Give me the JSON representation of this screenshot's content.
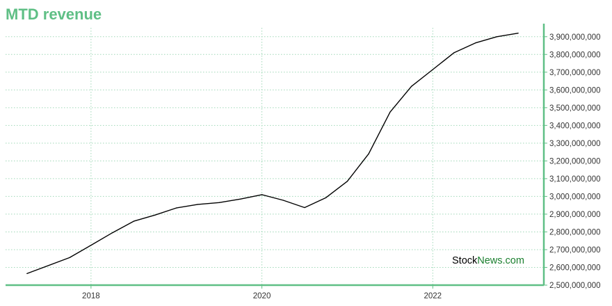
{
  "chart_data": {
    "type": "line",
    "title": "MTD revenue",
    "xlabel": "",
    "ylabel": "",
    "x_ticks": [
      2018,
      2020,
      2022
    ],
    "x_range": [
      2017.0,
      2023.3
    ],
    "y_range": [
      2500000000,
      3950000000
    ],
    "y_tick_start": 2500000000,
    "y_tick_step": 100000000,
    "y_tick_count": 15,
    "grid": true,
    "y_axis_position": "right",
    "series": [
      {
        "x": [
          2017.25,
          2017.75,
          2018.0,
          2018.25,
          2018.5,
          2018.75,
          2019.0,
          2019.25,
          2019.5,
          2019.75,
          2020.0,
          2020.25,
          2020.5,
          2020.75,
          2021.0,
          2021.25,
          2021.5,
          2021.75,
          2022.0,
          2022.25,
          2022.5,
          2022.75,
          2023.0
        ],
        "values": [
          2565000000,
          2655000000,
          2725000000,
          2795000000,
          2860000000,
          2895000000,
          2935000000,
          2955000000,
          2965000000,
          2985000000,
          3010000000,
          2978000000,
          2937000000,
          2993000000,
          3085000000,
          3240000000,
          3475000000,
          3620000000,
          3715000000,
          3810000000,
          3865000000,
          3900000000,
          3920000000
        ],
        "color": "#000000"
      }
    ]
  },
  "colors": {
    "accent": "#5fbf85",
    "axis": "#5fbf85",
    "grid": "#9fd8b7",
    "line": "#000000"
  },
  "watermark": {
    "part1": "Stock",
    "part2": "News.com",
    "color1": "#000000",
    "color2": "#1a7f2e"
  }
}
